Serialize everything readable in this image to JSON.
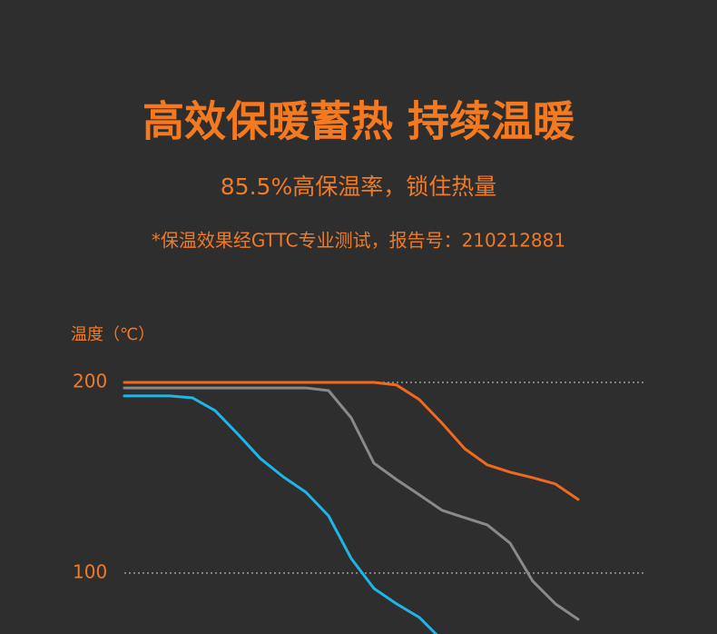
{
  "chart_data": {
    "type": "line",
    "title": "高效保暖蓄热 持续温暖",
    "subtitle": "85.5%高保温率，锁住热量",
    "annotation": "*保温效果经GTTC专业测试，报告号：210212881",
    "y_label": "温度（℃）",
    "ylim": [
      68,
      210
    ],
    "yticks": [
      100,
      200
    ],
    "grid": true,
    "series": [
      {
        "color": "#f06a1e",
        "values": [
          200,
          200,
          200,
          200,
          200,
          200,
          200,
          200,
          200,
          200,
          200,
          200,
          198.6,
          191,
          178.6,
          165.2,
          156.7,
          152.9,
          150,
          146.7,
          138.6
        ]
      },
      {
        "color": "#8a8a8a",
        "values": [
          197.1,
          197.1,
          197.1,
          197.1,
          197.1,
          197.1,
          197.1,
          197.1,
          197.1,
          195.7,
          181.4,
          157.6,
          149,
          141,
          132.9,
          129,
          125.2,
          115.7,
          95.7,
          83.8,
          75.7
        ]
      },
      {
        "color": "#1fb5e6",
        "values": [
          192.9,
          192.9,
          192.9,
          191.9,
          185.2,
          172.9,
          160,
          150.5,
          142.4,
          130,
          107.6,
          91.9,
          83.8,
          76.7,
          64.8,
          null,
          null,
          null,
          null,
          null,
          null
        ]
      }
    ]
  }
}
